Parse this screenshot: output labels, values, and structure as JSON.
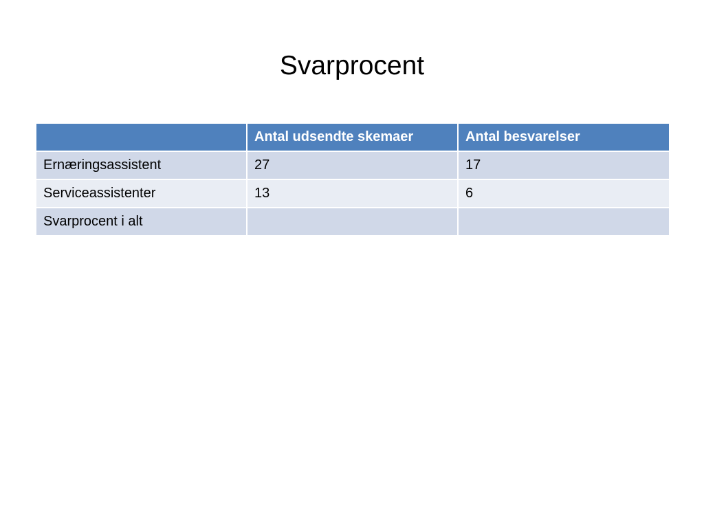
{
  "slide": {
    "title": "Svarprocent"
  },
  "table": {
    "header": [
      "",
      "Antal udsendte skemaer",
      "Antal besvarelser"
    ],
    "rows": [
      [
        "Ernæringsassistent",
        "27",
        "17"
      ],
      [
        "Serviceassistenter",
        "13",
        "6"
      ],
      [
        "Svarprocent i alt",
        "",
        ""
      ]
    ]
  },
  "colors": {
    "header_bg": "#4f81bd",
    "row_band_1": "#d0d8e8",
    "row_band_2": "#e9edf4",
    "header_text": "#ffffff"
  }
}
